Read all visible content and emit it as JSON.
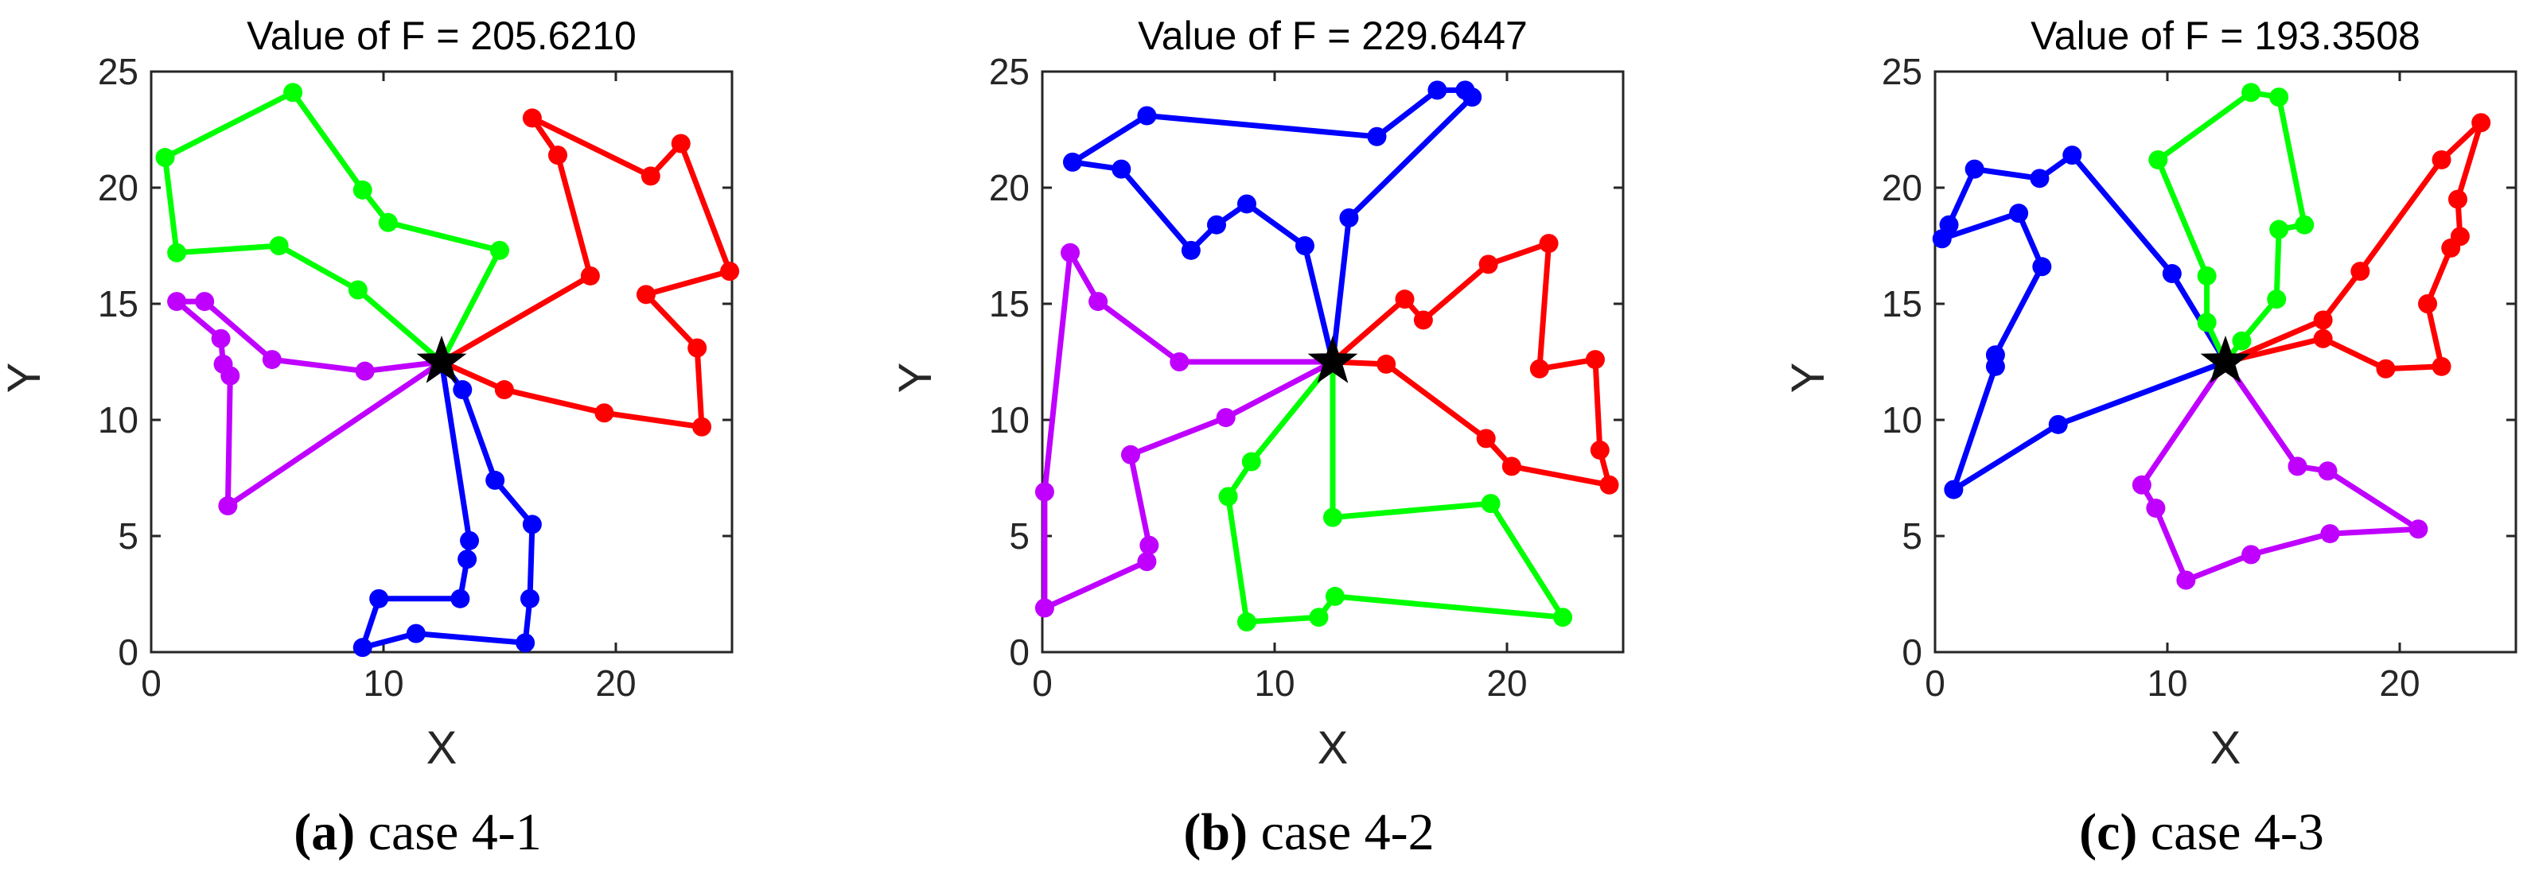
{
  "chart_data": [
    {
      "type": "line",
      "title": "Value of F = 205.6210",
      "xlabel": "X",
      "ylabel": "Y",
      "xlim": [
        0,
        25
      ],
      "ylim": [
        0,
        25
      ],
      "xticks": [
        "0",
        "10",
        "20"
      ],
      "yticks": [
        "0",
        "5",
        "10",
        "15",
        "20",
        "25"
      ],
      "grid": false,
      "caption_letter": "(a)",
      "caption_text": "case 4-1",
      "depot": [
        12.5,
        12.5
      ],
      "series": [
        {
          "color": "#00ff00",
          "x": [
            12.5,
            15.0,
            10.2,
            9.1,
            6.1,
            0.6,
            1.1,
            5.5,
            8.9,
            12.5
          ],
          "y": [
            12.5,
            17.3,
            18.5,
            19.9,
            24.1,
            21.3,
            17.2,
            17.5,
            15.6,
            12.5
          ]
        },
        {
          "color": "#ff0000",
          "x": [
            12.5,
            18.9,
            17.5,
            16.4,
            21.5,
            22.8,
            24.9,
            21.3,
            23.5,
            23.7,
            19.5,
            15.2,
            12.5
          ],
          "y": [
            12.5,
            16.2,
            21.4,
            23.0,
            20.5,
            21.9,
            16.4,
            15.4,
            13.1,
            9.7,
            10.3,
            11.3,
            12.5
          ]
        },
        {
          "color": "#0000ff",
          "x": [
            12.5,
            13.4,
            14.8,
            16.4,
            16.3,
            16.1,
            11.4,
            9.1,
            9.8,
            13.3,
            13.6,
            13.7,
            12.5
          ],
          "y": [
            12.5,
            11.3,
            7.4,
            5.5,
            2.3,
            0.4,
            0.8,
            0.2,
            2.3,
            2.3,
            4.0,
            4.8,
            12.5
          ]
        },
        {
          "color": "#bf00ff",
          "x": [
            12.5,
            9.2,
            5.2,
            2.3,
            1.1,
            3.0,
            3.1,
            3.4,
            3.3,
            12.5
          ],
          "y": [
            12.5,
            12.1,
            12.6,
            15.1,
            15.1,
            13.5,
            12.4,
            11.9,
            6.3,
            12.5
          ]
        }
      ]
    },
    {
      "type": "line",
      "title": "Value of F = 229.6447",
      "xlabel": "X",
      "ylabel": "Y",
      "xlim": [
        0,
        25
      ],
      "ylim": [
        0,
        25
      ],
      "xticks": [
        "0",
        "10",
        "20"
      ],
      "yticks": [
        "0",
        "5",
        "10",
        "15",
        "20",
        "25"
      ],
      "grid": false,
      "caption_letter": "(b)",
      "caption_text": "case 4-2",
      "depot": [
        12.5,
        12.5
      ],
      "series": [
        {
          "color": "#0000ff",
          "x": [
            12.5,
            13.2,
            18.5,
            18.2,
            17.0,
            14.4,
            4.5,
            1.3,
            3.4,
            6.4,
            7.5,
            8.8,
            11.3,
            12.5
          ],
          "y": [
            12.5,
            18.7,
            23.9,
            24.2,
            24.2,
            22.2,
            23.1,
            21.1,
            20.8,
            17.3,
            18.4,
            19.3,
            17.5,
            12.5
          ]
        },
        {
          "color": "#ff0000",
          "x": [
            12.5,
            15.6,
            16.4,
            19.2,
            21.8,
            21.4,
            23.8,
            24.0,
            24.4,
            20.2,
            19.1,
            14.8,
            12.5
          ],
          "y": [
            12.5,
            15.2,
            14.3,
            16.7,
            17.6,
            12.2,
            12.6,
            8.7,
            7.2,
            8.0,
            9.2,
            12.4,
            12.5
          ]
        },
        {
          "color": "#00ff00",
          "x": [
            12.5,
            9.0,
            8.0,
            8.8,
            11.9,
            12.6,
            22.4,
            19.3,
            12.5,
            12.5
          ],
          "y": [
            12.5,
            8.2,
            6.7,
            1.3,
            1.5,
            2.4,
            1.5,
            6.4,
            5.8,
            12.5
          ]
        },
        {
          "color": "#bf00ff",
          "x": [
            12.5,
            5.9,
            2.4,
            1.2,
            0.1,
            0.1,
            4.5,
            4.6,
            3.8,
            7.9,
            12.5
          ],
          "y": [
            12.5,
            12.5,
            15.1,
            17.2,
            6.9,
            1.9,
            3.9,
            4.6,
            8.5,
            10.1,
            12.5
          ]
        }
      ]
    },
    {
      "type": "line",
      "title": "Value of F = 193.3508",
      "xlabel": "X",
      "ylabel": "Y",
      "xlim": [
        0,
        25
      ],
      "ylim": [
        0,
        25
      ],
      "xticks": [
        "0",
        "10",
        "20"
      ],
      "yticks": [
        "0",
        "5",
        "10",
        "15",
        "20",
        "25"
      ],
      "grid": false,
      "caption_letter": "(c)",
      "caption_text": "case 4-3",
      "depot": [
        12.5,
        12.5
      ],
      "series": [
        {
          "color": "#0000ff",
          "x": [
            12.5,
            10.2,
            5.9,
            4.5,
            1.7,
            0.6,
            0.3,
            3.6,
            4.6,
            2.6,
            2.6,
            0.8,
            5.3,
            12.5
          ],
          "y": [
            12.5,
            16.3,
            21.4,
            20.4,
            20.8,
            18.4,
            17.8,
            18.9,
            16.6,
            12.8,
            12.3,
            7.0,
            9.8,
            12.5
          ]
        },
        {
          "color": "#00ff00",
          "x": [
            12.5,
            11.7,
            11.7,
            9.6,
            13.6,
            14.8,
            15.9,
            14.8,
            14.7,
            13.2,
            12.5
          ],
          "y": [
            12.5,
            14.2,
            16.2,
            21.2,
            24.1,
            23.9,
            18.4,
            18.2,
            15.2,
            13.4,
            12.5
          ]
        },
        {
          "color": "#ff0000",
          "x": [
            12.5,
            16.7,
            18.3,
            21.8,
            23.5,
            22.5,
            22.6,
            22.2,
            21.2,
            21.8,
            19.4,
            16.7,
            12.5
          ],
          "y": [
            12.5,
            14.3,
            16.4,
            21.2,
            22.8,
            19.5,
            17.9,
            17.4,
            15.0,
            12.3,
            12.2,
            13.5,
            12.5
          ]
        },
        {
          "color": "#bf00ff",
          "x": [
            12.5,
            15.6,
            16.9,
            20.8,
            17.0,
            13.6,
            10.8,
            9.5,
            8.9,
            12.5
          ],
          "y": [
            12.5,
            8.0,
            7.8,
            5.3,
            5.1,
            4.2,
            3.1,
            6.2,
            7.2,
            12.5
          ]
        }
      ]
    }
  ]
}
